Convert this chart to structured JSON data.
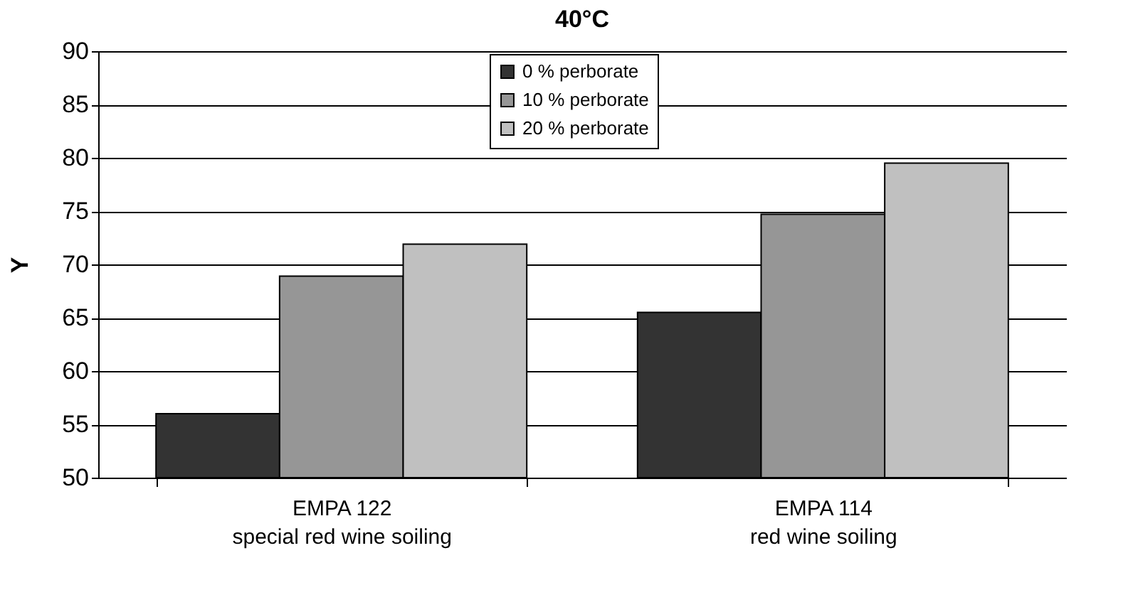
{
  "chart_data": {
    "type": "bar",
    "title": "40°C",
    "ylabel": "Y",
    "categories": [
      "EMPA 122\nspecial red wine soiling",
      "EMPA 114\nred wine soiling"
    ],
    "series": [
      {
        "name": "0 %   perborate",
        "color": "#333333",
        "values": [
          56,
          65.5
        ]
      },
      {
        "name": "10 % perborate",
        "color": "#969696",
        "values": [
          68.9,
          74.7
        ]
      },
      {
        "name": "20 % perborate",
        "color": "#c0c0c0",
        "values": [
          71.9,
          79.5
        ]
      }
    ],
    "ylim": [
      50,
      90
    ],
    "yticks": [
      50,
      55,
      60,
      65,
      70,
      75,
      80,
      85,
      90
    ],
    "grid": "y",
    "legend": "top"
  }
}
